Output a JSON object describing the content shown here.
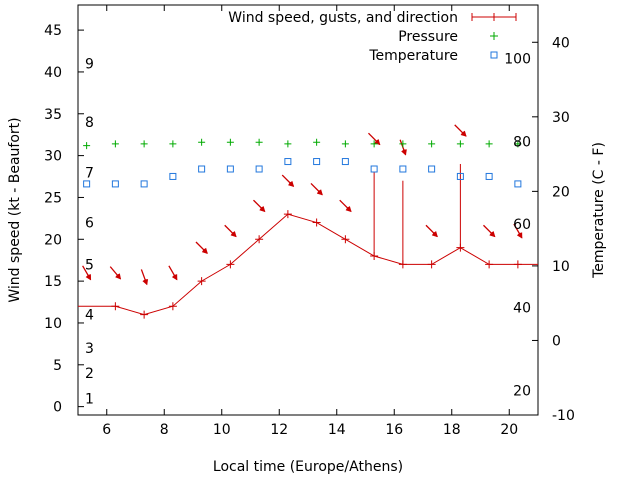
{
  "chart_data": {
    "type": "line",
    "title": "",
    "xlabel": "Local time (Europe/Athens)",
    "ylabel": "Wind speed (kt - Beaufort)",
    "y2label": "Temperature (C - F)",
    "xlim": [
      5,
      21
    ],
    "ylim": [
      -1,
      48
    ],
    "y2lim": [
      -10,
      45
    ],
    "grid": false,
    "legend_position": "top-right",
    "x_ticks": [
      6,
      8,
      10,
      12,
      14,
      16,
      18,
      20
    ],
    "y_ticks": [
      0,
      5,
      10,
      15,
      20,
      25,
      30,
      35,
      40,
      45
    ],
    "y2_ticks": [
      -10,
      0,
      10,
      20,
      30,
      40
    ],
    "beaufort_labels": [
      {
        "text": "1",
        "kt": 1
      },
      {
        "text": "2",
        "kt": 4
      },
      {
        "text": "3",
        "kt": 7
      },
      {
        "text": "4",
        "kt": 11
      },
      {
        "text": "5",
        "kt": 17
      },
      {
        "text": "6",
        "kt": 22
      },
      {
        "text": "7",
        "kt": 28
      },
      {
        "text": "8",
        "kt": 34
      },
      {
        "text": "9",
        "kt": 41
      }
    ],
    "fahrenheit_labels": [
      {
        "text": "20",
        "c": -6.7
      },
      {
        "text": "40",
        "c": 4.4
      },
      {
        "text": "60",
        "c": 15.6
      },
      {
        "text": "80",
        "c": 26.7
      },
      {
        "text": "100",
        "c": 37.8
      }
    ],
    "legend": [
      {
        "label": "Wind speed, gusts, and direction",
        "color": "#cc0000",
        "style": "line-plus"
      },
      {
        "label": "Pressure",
        "color": "#00aa00",
        "style": "plus"
      },
      {
        "label": "Temperature",
        "color": "#2277dd",
        "style": "square"
      }
    ],
    "series": [
      {
        "name": "Wind speed",
        "axis": "y",
        "x": [
          5,
          6.3,
          7.3,
          8.3,
          9.3,
          10.3,
          11.3,
          12.3,
          13.3,
          14.3,
          15.3,
          16.3,
          17.3,
          18.3,
          19.3,
          20.3,
          21
        ],
        "values": [
          12,
          12,
          11,
          12,
          15,
          17,
          20,
          23,
          22,
          20,
          18,
          17,
          17,
          19,
          17,
          17,
          17
        ]
      },
      {
        "name": "Gusts",
        "axis": "y",
        "x": [
          15.3,
          16.3,
          18.3
        ],
        "low": [
          18,
          17,
          19
        ],
        "high": [
          28,
          27,
          29
        ]
      },
      {
        "name": "Direction",
        "axis": "y",
        "x": [
          5.3,
          6.3,
          7.3,
          8.3,
          9.3,
          10.3,
          11.3,
          12.3,
          13.3,
          14.3,
          15.3,
          16.3,
          18.3,
          17.3,
          19.3,
          20.3
        ],
        "y": [
          16,
          16,
          15.5,
          16,
          19,
          21,
          24,
          27,
          26,
          24,
          32,
          31,
          33,
          21,
          21,
          21
        ],
        "angle_deg": [
          60,
          50,
          70,
          60,
          45,
          45,
          45,
          45,
          45,
          45,
          45,
          70,
          45,
          45,
          45,
          60
        ]
      },
      {
        "name": "Pressure",
        "axis": "y",
        "x": [
          5.3,
          6.3,
          7.3,
          8.3,
          9.3,
          10.3,
          11.3,
          12.3,
          13.3,
          14.3,
          15.3,
          16.3,
          17.3,
          18.3,
          19.3,
          20.3
        ],
        "values": [
          31.2,
          31.4,
          31.4,
          31.4,
          31.6,
          31.6,
          31.6,
          31.4,
          31.6,
          31.4,
          31.4,
          31.4,
          31.4,
          31.4,
          31.4,
          31.4
        ]
      },
      {
        "name": "Temperature",
        "axis": "y2",
        "x": [
          5.3,
          6.3,
          7.3,
          8.3,
          9.3,
          10.3,
          11.3,
          12.3,
          13.3,
          14.3,
          15.3,
          16.3,
          17.3,
          18.3,
          19.3,
          20.3
        ],
        "values": [
          21,
          21,
          21,
          22,
          23,
          23,
          23,
          24,
          24,
          24,
          23,
          23,
          23,
          22,
          22,
          21
        ]
      }
    ]
  }
}
